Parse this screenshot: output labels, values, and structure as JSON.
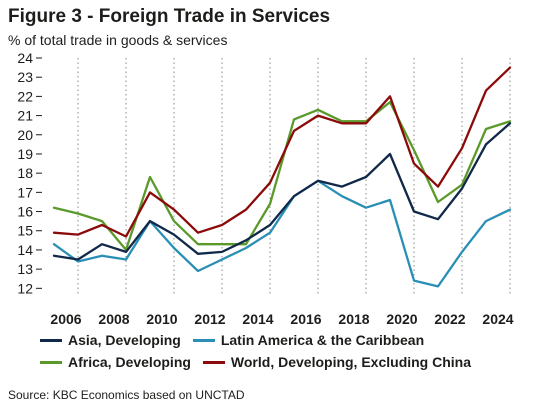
{
  "title": "Figure 3 - Foreign Trade in Services",
  "subtitle": "% of total trade in goods & services",
  "source": "Source: KBC Economics based on UNCTAD",
  "chart_data": {
    "type": "line",
    "x": [
      2005.5,
      2006.5,
      2007.5,
      2008.5,
      2009.5,
      2010.5,
      2011.5,
      2012.5,
      2013.5,
      2014.5,
      2015.5,
      2016.5,
      2017.5,
      2018.5,
      2019.5,
      2020.5,
      2021.5,
      2022.5,
      2023.5,
      2024.5
    ],
    "xticks": [
      2006,
      2008,
      2010,
      2012,
      2014,
      2016,
      2018,
      2020,
      2022,
      2024
    ],
    "yticks": [
      12,
      13,
      14,
      15,
      16,
      17,
      18,
      19,
      20,
      21,
      22,
      23,
      24
    ],
    "xlim": [
      2005,
      2025
    ],
    "ylim": [
      11.6,
      24.0
    ],
    "grid": "vertical dotted",
    "series": [
      {
        "name": "Africa, Developing",
        "color": "#5a9a2b",
        "values": [
          16.2,
          15.9,
          15.5,
          14.0,
          17.8,
          15.5,
          14.3,
          14.3,
          14.3,
          16.4,
          20.8,
          21.3,
          20.7,
          20.7,
          21.7,
          19.2,
          16.5,
          17.4,
          20.3,
          20.7
        ]
      },
      {
        "name": "World, Developing, Excluding China",
        "color": "#8b0a0a",
        "values": [
          14.9,
          14.8,
          15.3,
          14.7,
          17.0,
          16.1,
          14.9,
          15.3,
          16.1,
          17.5,
          20.2,
          21.0,
          20.6,
          20.6,
          22.0,
          18.5,
          17.3,
          19.3,
          22.3,
          23.5
        ]
      },
      {
        "name": "Latin America & the Caribbean",
        "color": "#2a8fb5",
        "values": [
          14.3,
          13.4,
          13.7,
          13.5,
          15.5,
          14.1,
          12.9,
          13.5,
          14.1,
          14.9,
          16.8,
          17.6,
          16.8,
          16.2,
          16.6,
          12.4,
          12.1,
          13.9,
          15.5,
          16.1
        ]
      },
      {
        "name": "Asia, Developing",
        "color": "#10294a",
        "values": [
          13.7,
          13.5,
          14.3,
          13.9,
          15.5,
          14.8,
          13.8,
          13.9,
          14.5,
          15.3,
          16.8,
          17.6,
          17.3,
          17.8,
          19.0,
          16.0,
          15.6,
          17.2,
          19.5,
          20.6
        ]
      }
    ],
    "legend": [
      [
        "Asia, Developing",
        "Latin America & the Caribbean"
      ],
      [
        "Africa, Developing",
        "World, Developing, Excluding China"
      ]
    ]
  }
}
